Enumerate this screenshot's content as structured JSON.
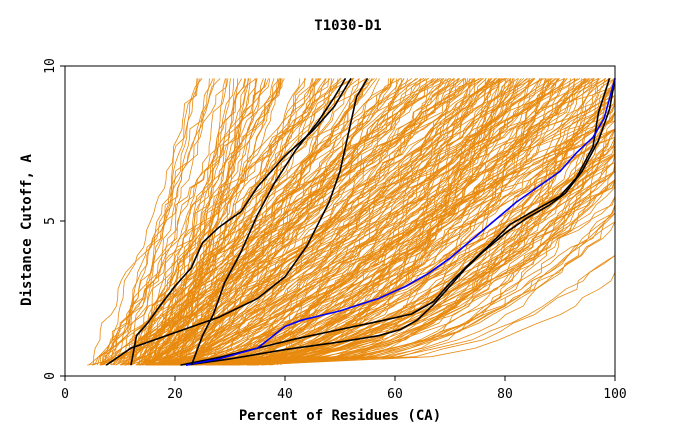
{
  "chart_data": {
    "type": "line",
    "title": "T1030-D1",
    "xlabel": "Percent of Residues (CA)",
    "ylabel": "Distance Cutoff, A",
    "xlim": [
      0,
      100
    ],
    "ylim": [
      0,
      10
    ],
    "x_ticks": [
      "0",
      "20",
      "40",
      "60",
      "80",
      "100"
    ],
    "y_ticks": [
      "0",
      "5",
      "10"
    ],
    "grid": false,
    "colors": {
      "models": "#e88a0f",
      "highlight": "#0000ff",
      "reference": "#000000"
    },
    "series": [
      {
        "color": "#000000",
        "points": [
          [
            7.5,
            0.35
          ],
          [
            12,
            0.9
          ],
          [
            20,
            1.4
          ],
          [
            28,
            1.9
          ],
          [
            35,
            2.5
          ],
          [
            40,
            3.2
          ],
          [
            44,
            4.2
          ],
          [
            48,
            5.6
          ],
          [
            50,
            6.6
          ],
          [
            51,
            7.4
          ],
          [
            52,
            8.2
          ],
          [
            53,
            9.0
          ],
          [
            55,
            9.6
          ]
        ]
      },
      {
        "color": "#000000",
        "points": [
          [
            12,
            0.35
          ],
          [
            13,
            1.3
          ],
          [
            15,
            1.7
          ],
          [
            17,
            2.2
          ],
          [
            20,
            2.9
          ],
          [
            23,
            3.5
          ],
          [
            25,
            4.3
          ],
          [
            28,
            4.8
          ],
          [
            32,
            5.3
          ],
          [
            35,
            6.1
          ],
          [
            40,
            7.1
          ],
          [
            45,
            7.9
          ],
          [
            49,
            8.7
          ],
          [
            52,
            9.6
          ]
        ]
      },
      {
        "color": "#000000",
        "points": [
          [
            21,
            0.35
          ],
          [
            28,
            0.6
          ],
          [
            35,
            0.9
          ],
          [
            42,
            1.2
          ],
          [
            50,
            1.5
          ],
          [
            58,
            1.8
          ],
          [
            63,
            2.0
          ],
          [
            67,
            2.4
          ],
          [
            70,
            3.0
          ],
          [
            74,
            3.7
          ],
          [
            77,
            4.2
          ],
          [
            81,
            4.9
          ],
          [
            86,
            5.4
          ],
          [
            90,
            5.8
          ],
          [
            93,
            6.4
          ],
          [
            96,
            7.4
          ],
          [
            97,
            8.5
          ],
          [
            99,
            9.6
          ]
        ]
      },
      {
        "color": "#000000",
        "points": [
          [
            22,
            0.35
          ],
          [
            30,
            0.55
          ],
          [
            40,
            0.85
          ],
          [
            50,
            1.1
          ],
          [
            57,
            1.3
          ],
          [
            61,
            1.5
          ],
          [
            64,
            1.8
          ],
          [
            67,
            2.3
          ],
          [
            70,
            2.9
          ],
          [
            73,
            3.5
          ],
          [
            76,
            4.0
          ],
          [
            80,
            4.6
          ],
          [
            84,
            5.1
          ],
          [
            88,
            5.5
          ],
          [
            91,
            5.9
          ],
          [
            94,
            6.6
          ],
          [
            97,
            7.6
          ],
          [
            99,
            8.6
          ],
          [
            100,
            9.6
          ]
        ]
      },
      {
        "color": "#0000ff",
        "points": [
          [
            22,
            0.35
          ],
          [
            28,
            0.55
          ],
          [
            35,
            0.9
          ],
          [
            40,
            1.6
          ],
          [
            43,
            1.8
          ],
          [
            50,
            2.1
          ],
          [
            57,
            2.5
          ],
          [
            62,
            2.9
          ],
          [
            66,
            3.3
          ],
          [
            70,
            3.8
          ],
          [
            74,
            4.4
          ],
          [
            78,
            5.0
          ],
          [
            82,
            5.6
          ],
          [
            86,
            6.1
          ],
          [
            90,
            6.6
          ],
          [
            93,
            7.2
          ],
          [
            96,
            7.7
          ],
          [
            98,
            8.3
          ],
          [
            100,
            9.6
          ]
        ]
      },
      {
        "color": "#000000",
        "points": [
          [
            23,
            0.35
          ],
          [
            25,
            1.3
          ],
          [
            27,
            2.0
          ],
          [
            29,
            3.0
          ],
          [
            32,
            4.0
          ],
          [
            35,
            5.2
          ],
          [
            38,
            6.2
          ],
          [
            42,
            7.3
          ],
          [
            46,
            8.2
          ],
          [
            49,
            9.0
          ],
          [
            51,
            9.6
          ]
        ]
      }
    ]
  }
}
